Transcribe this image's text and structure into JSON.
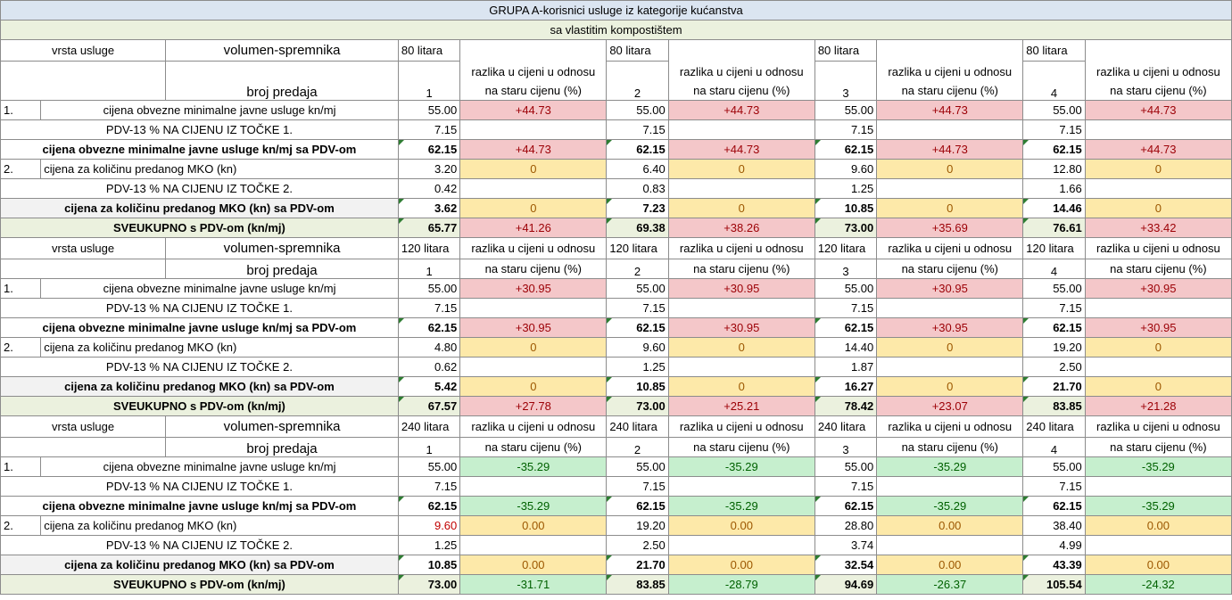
{
  "title": "GRUPA A-korisnici usluge iz kategorije kućanstva",
  "subtitle": "sa vlastitim kompostištem",
  "labels": {
    "vrsta_usluge": "vrsta usluge",
    "volumen": "volumen-spremnika",
    "broj_predaja": "broj predaja",
    "razlika_line1": "razlika u cijeni u odnosu",
    "razlika_line2": "na staru cijenu (%)",
    "row1_num": "1.",
    "row1": "cijena obvezne minimalne javne usluge kn/mj",
    "row1_pdv": "PDV-13 % NA CIJENU IZ TOČKE 1.",
    "row1_total": "cijena obvezne minimalne javne usluge kn/mj sa PDV-om",
    "row2_num": "2.",
    "row2": "cijena za količinu predanog MKO (kn)",
    "row2_pdv": "PDV-13 % NA CIJENU IZ TOČKE 2.",
    "row2_total": "cijena za količinu predanog MKO (kn) sa PDV-om",
    "grand_total": "SVEUKUPNO s PDV-om (kn/mj)"
  },
  "sections": [
    {
      "volume": "80 litara",
      "counts": [
        "1",
        "2",
        "3",
        "4"
      ],
      "r1": [
        "55.00",
        "55.00",
        "55.00",
        "55.00"
      ],
      "r1_diff": [
        "+44.73",
        "+44.73",
        "+44.73",
        "+44.73"
      ],
      "r1_pdv": [
        "7.15",
        "7.15",
        "7.15",
        "7.15"
      ],
      "r1_tot": [
        "62.15",
        "62.15",
        "62.15",
        "62.15"
      ],
      "r1_tot_diff": [
        "+44.73",
        "+44.73",
        "+44.73",
        "+44.73"
      ],
      "r2": [
        "3.20",
        "6.40",
        "9.60",
        "12.80"
      ],
      "r2_diff": [
        "0",
        "0",
        "0",
        "0"
      ],
      "r2_pdv": [
        "0.42",
        "0.83",
        "1.25",
        "1.66"
      ],
      "r2_tot": [
        "3.62",
        "7.23",
        "10.85",
        "14.46"
      ],
      "r2_tot_diff": [
        "0",
        "0",
        "0",
        "0"
      ],
      "grand": [
        "65.77",
        "69.38",
        "73.00",
        "76.61"
      ],
      "grand_diff": [
        "+41.26",
        "+38.26",
        "+35.69",
        "+33.42"
      ]
    },
    {
      "volume": "120 litara",
      "counts": [
        "1",
        "2",
        "3",
        "4"
      ],
      "r1": [
        "55.00",
        "55.00",
        "55.00",
        "55.00"
      ],
      "r1_diff": [
        "+30.95",
        "+30.95",
        "+30.95",
        "+30.95"
      ],
      "r1_pdv": [
        "7.15",
        "7.15",
        "7.15",
        "7.15"
      ],
      "r1_tot": [
        "62.15",
        "62.15",
        "62.15",
        "62.15"
      ],
      "r1_tot_diff": [
        "+30.95",
        "+30.95",
        "+30.95",
        "+30.95"
      ],
      "r2": [
        "4.80",
        "9.60",
        "14.40",
        "19.20"
      ],
      "r2_diff": [
        "0",
        "0",
        "0",
        "0"
      ],
      "r2_pdv": [
        "0.62",
        "1.25",
        "1.87",
        "2.50"
      ],
      "r2_tot": [
        "5.42",
        "10.85",
        "16.27",
        "21.70"
      ],
      "r2_tot_diff": [
        "0",
        "0",
        "0",
        "0"
      ],
      "grand": [
        "67.57",
        "73.00",
        "78.42",
        "83.85"
      ],
      "grand_diff": [
        "+27.78",
        "+25.21",
        "+23.07",
        "+21.28"
      ]
    },
    {
      "volume": "240 litara",
      "counts": [
        "1",
        "2",
        "3",
        "4"
      ],
      "r1": [
        "55.00",
        "55.00",
        "55.00",
        "55.00"
      ],
      "r1_diff": [
        "-35.29",
        "-35.29",
        "-35.29",
        "-35.29"
      ],
      "r1_pdv": [
        "7.15",
        "7.15",
        "7.15",
        "7.15"
      ],
      "r1_tot": [
        "62.15",
        "62.15",
        "62.15",
        "62.15"
      ],
      "r1_tot_diff": [
        "-35.29",
        "-35.29",
        "-35.29",
        "-35.29"
      ],
      "r2": [
        "9.60",
        "19.20",
        "28.80",
        "38.40"
      ],
      "r2_diff": [
        "0.00",
        "0.00",
        "0.00",
        "0.00"
      ],
      "r2_pdv": [
        "1.25",
        "2.50",
        "3.74",
        "4.99"
      ],
      "r2_tot": [
        "10.85",
        "21.70",
        "32.54",
        "43.39"
      ],
      "r2_tot_diff": [
        "0.00",
        "0.00",
        "0.00",
        "0.00"
      ],
      "grand": [
        "73.00",
        "83.85",
        "94.69",
        "105.54"
      ],
      "grand_diff": [
        "-31.71",
        "-28.79",
        "-26.37",
        "-24.32"
      ]
    }
  ],
  "colors": {
    "increase_fill": "#f4c7c9",
    "increase_text": "#9c0006",
    "neutral_fill": "#fde9a9",
    "neutral_text": "#9c5700",
    "decrease_fill": "#c6efce",
    "decrease_text": "#006100",
    "title_fill": "#dbe5f1",
    "subtitle_fill": "#ebf1de"
  }
}
